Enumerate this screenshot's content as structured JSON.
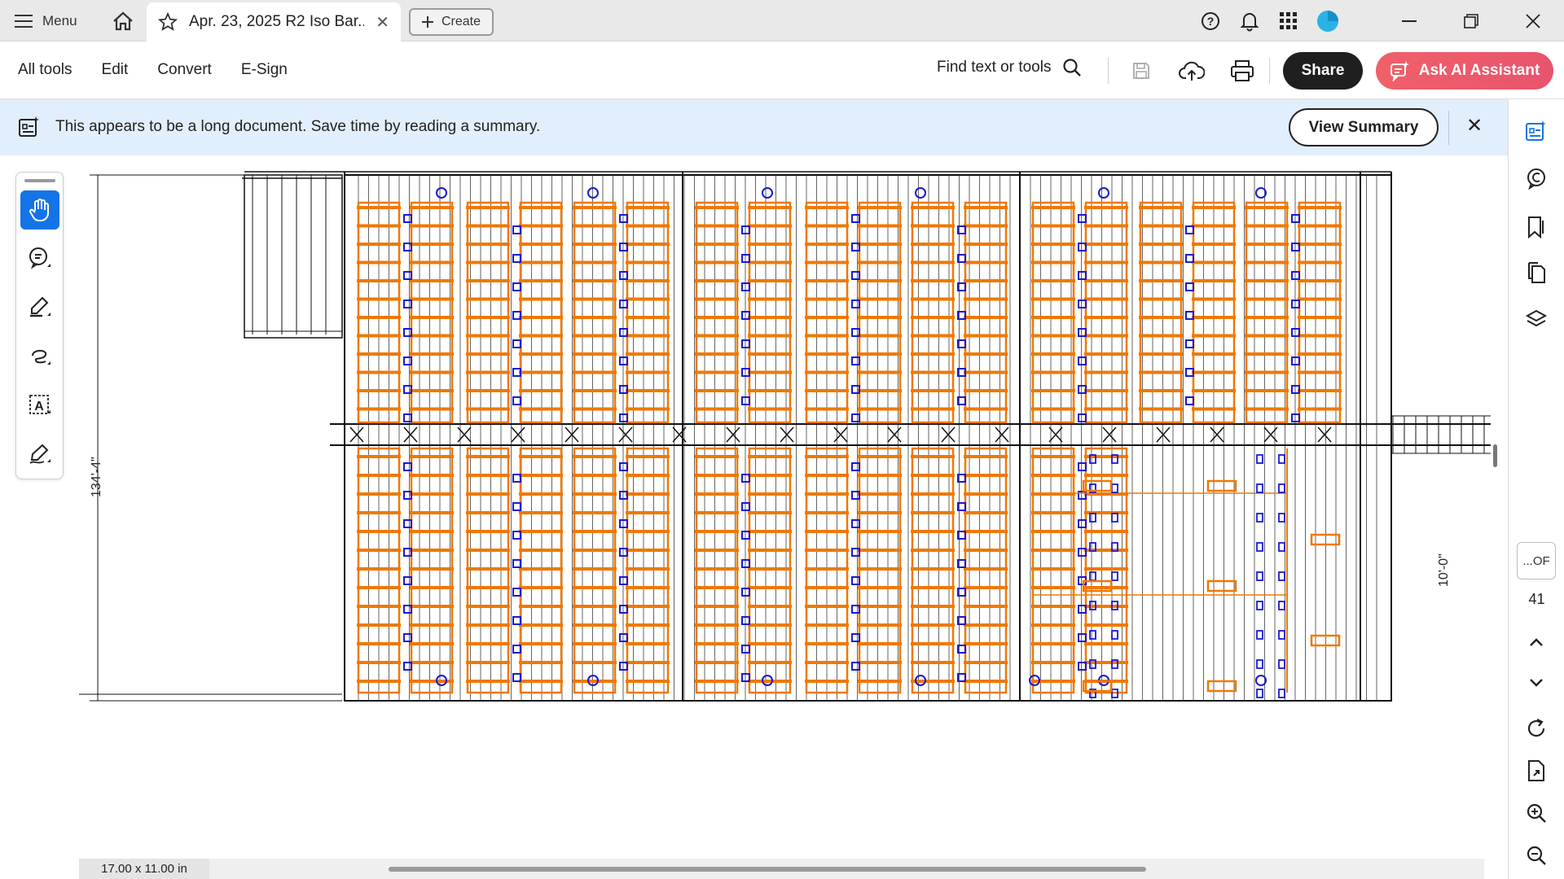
{
  "tabbar": {
    "menu_label": "Menu",
    "tab_title": "Apr. 23, 2025 R2 Iso Bar...",
    "create_label": "Create",
    "icons": [
      "hamburger-icon",
      "home-icon",
      "star-icon",
      "close-icon",
      "plus-icon",
      "help-icon",
      "bell-icon",
      "apps-grid-icon",
      "avatar",
      "minimize-icon",
      "restore-icon",
      "close-window-icon"
    ]
  },
  "toolbar": {
    "menu_items": [
      "All tools",
      "Edit",
      "Convert",
      "E-Sign"
    ],
    "find_label": "Find text or tools",
    "share_label": "Share",
    "ai_label": "Ask AI Assistant"
  },
  "banner": {
    "message": "This appears to be a long document. Save time by reading a summary.",
    "view_summary_label": "View Summary"
  },
  "right_rail": {
    "page_current": "...OF",
    "page_total": "41"
  },
  "document": {
    "dim_vertical": "134'-4\"",
    "dim_right": "10'-0\"",
    "page_size": "17.00 x 11.00 in"
  },
  "colors": {
    "accent": "#1473e6",
    "ai_button": "#e8546d",
    "banner_bg": "#e1eefb",
    "drawing_orange": "#f07800",
    "drawing_blue": "#1a1ad0"
  }
}
